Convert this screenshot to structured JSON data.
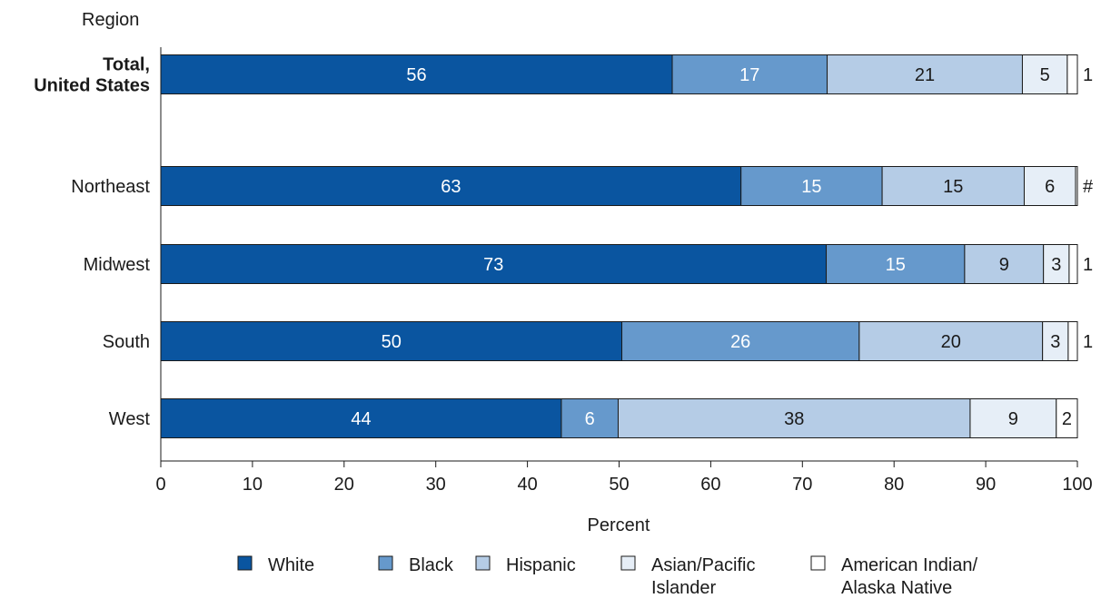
{
  "chart_data": {
    "type": "bar",
    "orientation": "horizontal",
    "stacked": true,
    "y_axis_title": "Region",
    "xlabel": "Percent",
    "xlim": [
      0,
      100
    ],
    "x_ticks": [
      "0",
      "10",
      "20",
      "30",
      "40",
      "50",
      "60",
      "70",
      "80",
      "90",
      "100"
    ],
    "grid": false,
    "legend_position": "bottom",
    "categories": [
      {
        "label": "Total,\nUnited States",
        "bold": true
      },
      {
        "label": "Northeast",
        "bold": false
      },
      {
        "label": "Midwest",
        "bold": false
      },
      {
        "label": "South",
        "bold": false
      },
      {
        "label": "West",
        "bold": false
      }
    ],
    "series": [
      {
        "name": "White",
        "color": "#0a55a0",
        "label_color": "#ffffff",
        "values": [
          55.8,
          63.3,
          72.6,
          50.3,
          43.7
        ],
        "labels": [
          "56",
          "63",
          "73",
          "50",
          "44"
        ]
      },
      {
        "name": "Black",
        "color": "#6699cc",
        "label_color": "#ffffff",
        "values": [
          16.9,
          15.4,
          15.1,
          25.9,
          6.2
        ],
        "labels": [
          "17",
          "15",
          "15",
          "26",
          "6"
        ]
      },
      {
        "name": "Hispanic",
        "color": "#b5cce6",
        "label_color": "#1a1a1a",
        "values": [
          21.3,
          15.5,
          8.6,
          20.0,
          38.4
        ],
        "labels": [
          "21",
          "15",
          "9",
          "20",
          "38"
        ]
      },
      {
        "name": "Asian/Pacific Islander",
        "legend_label": "Asian/Pacific\nIslander",
        "color": "#e6eef7",
        "label_color": "#1a1a1a",
        "values": [
          4.9,
          5.6,
          2.8,
          2.8,
          9.4
        ],
        "labels": [
          "5",
          "6",
          "3",
          "3",
          "9"
        ]
      },
      {
        "name": "American Indian/Alaska Native",
        "legend_label": "American Indian/\nAlaska Native",
        "color": "#ffffff",
        "label_color": "#1a1a1a",
        "values": [
          1.1,
          0.2,
          0.9,
          1.0,
          2.3
        ],
        "labels": [
          "1",
          "#",
          "1",
          "1",
          "2"
        ]
      }
    ]
  }
}
